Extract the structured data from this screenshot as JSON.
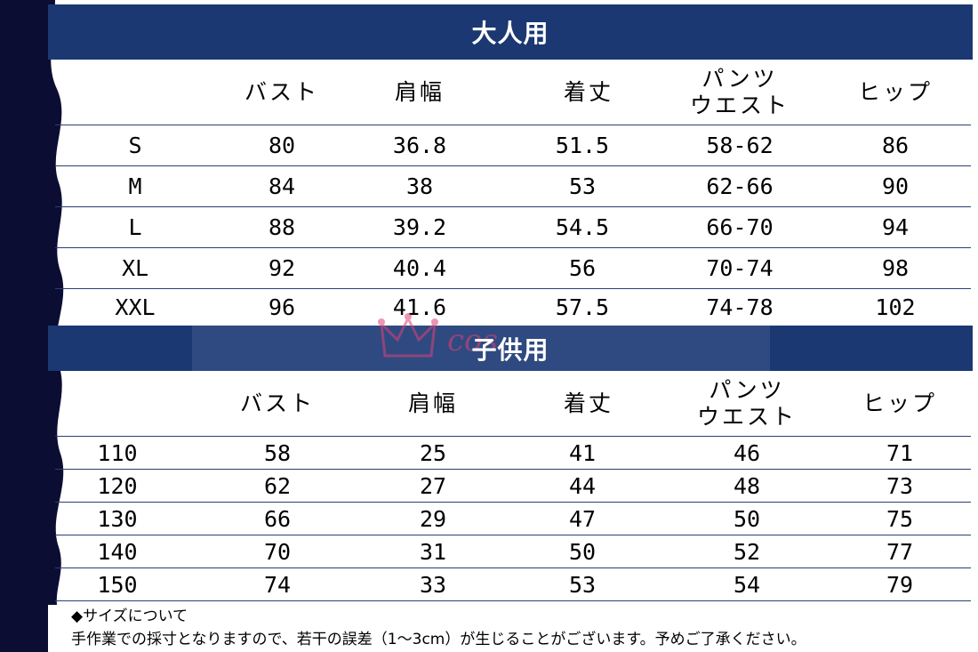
{
  "adult": {
    "title": "大人用",
    "headers": [
      "",
      "バスト",
      "肩幅",
      "着丈",
      "パンツ",
      "ウエスト",
      "ヒップ"
    ],
    "rows": [
      [
        "S",
        "80",
        "36.8",
        "51.5",
        "58-62",
        "86"
      ],
      [
        "M",
        "84",
        "38",
        "53",
        "62-66",
        "90"
      ],
      [
        "L",
        "88",
        "39.2",
        "54.5",
        "66-70",
        "94"
      ],
      [
        "XL",
        "92",
        "40.4",
        "56",
        "70-74",
        "98"
      ],
      [
        "XXL",
        "96",
        "41.6",
        "57.5",
        "74-78",
        "102"
      ]
    ]
  },
  "child": {
    "title": "子供用",
    "headers": [
      "",
      "バスト",
      "肩幅",
      "着丈",
      "パンツ",
      "ウエスト",
      "ヒップ"
    ],
    "rows": [
      [
        "110",
        "58",
        "25",
        "41",
        "46",
        "71"
      ],
      [
        "120",
        "62",
        "27",
        "44",
        "48",
        "73"
      ],
      [
        "130",
        "66",
        "29",
        "47",
        "50",
        "75"
      ],
      [
        "140",
        "70",
        "31",
        "50",
        "52",
        "77"
      ],
      [
        "150",
        "74",
        "33",
        "53",
        "54",
        "79"
      ]
    ]
  },
  "notes": {
    "line1": "◆サイズについて",
    "line2": "手作業での採寸となりますので、若干の誤差（1～3cm）が生じることがございます。予めご了承ください。"
  },
  "watermark": {
    "text": "cos",
    "color": "#e0407a"
  }
}
